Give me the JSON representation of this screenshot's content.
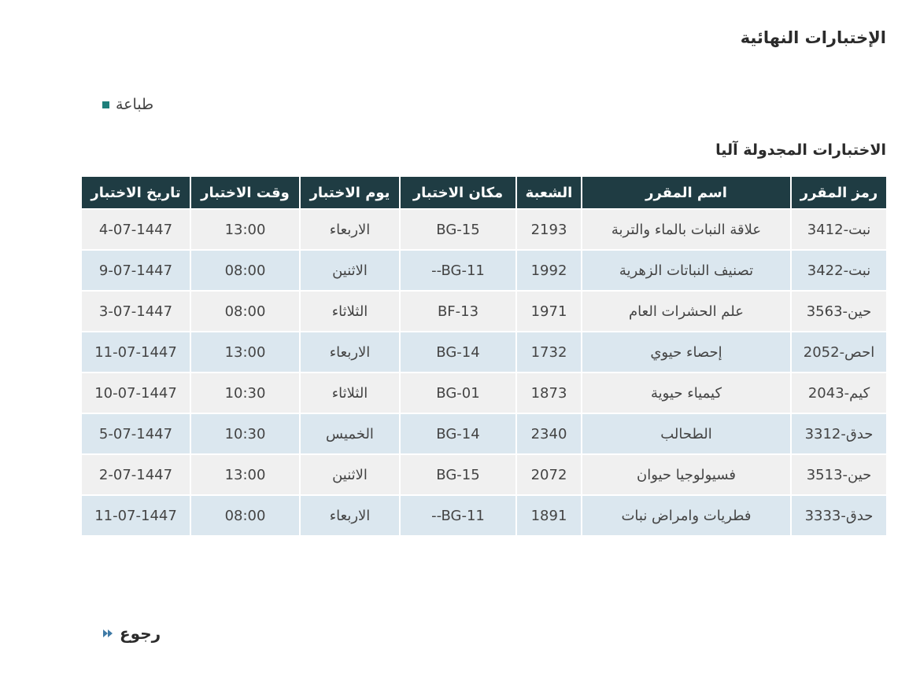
{
  "header": {
    "title": "الإختبارات النهائية"
  },
  "print_label": "طباعة",
  "section_title": "الاختبارات المجدولة آليا",
  "table": {
    "columns": [
      "رمز المقرر",
      "اسم المقرر",
      "الشعبة",
      "مكان الاختبار",
      "يوم الاختبار",
      "وقت الاختبار",
      "تاريخ الاختبار"
    ],
    "rows": [
      [
        "341نبت-2",
        "علاقة النبات بالماء والتربة",
        "2193",
        "BG-15",
        "الاربعاء",
        "13:00",
        "4-07-1447"
      ],
      [
        "342نبت-2",
        "تصنيف النباتات الزهرية",
        "1992",
        "--BG-11",
        "الاثنين",
        "08:00",
        "9-07-1447"
      ],
      [
        "356حين-3",
        "علم الحشرات العام",
        "1971",
        "BF-13",
        "الثلاثاء",
        "08:00",
        "3-07-1447"
      ],
      [
        "205احص-2",
        "إحصاء حيوي",
        "1732",
        "BG-14",
        "الاربعاء",
        "13:00",
        "11-07-1447"
      ],
      [
        "204كيم-3",
        "كيمياء حيوية",
        "1873",
        "BG-01",
        "الثلاثاء",
        "10:30",
        "10-07-1447"
      ],
      [
        "331حدق-2",
        "الطحالب",
        "2340",
        "BG-14",
        "الخميس",
        "10:30",
        "5-07-1447"
      ],
      [
        "351حين-3",
        "فسيولوجيا حيوان",
        "2072",
        "BG-15",
        "الاثنين",
        "13:00",
        "2-07-1447"
      ],
      [
        "333حدق-3",
        "فطريات وامراض نبات",
        "1891",
        "--BG-11",
        "الاربعاء",
        "08:00",
        "11-07-1447"
      ]
    ]
  },
  "back_label": "رجوع"
}
